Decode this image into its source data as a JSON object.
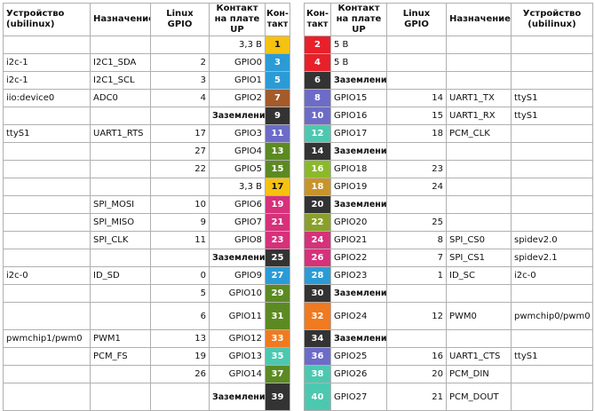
{
  "headers": {
    "left": [
      "Устройство (ubilinux)",
      "Назначение",
      "Linux GPIO",
      "Контакт на плате UP",
      "Кон-такт"
    ],
    "right": [
      "Кон-такт",
      "Контакт на плате UP",
      "Linux GPIO",
      "Назначение",
      "Устройство (ubilinux)"
    ]
  },
  "rows": [
    {
      "tall": false,
      "l": {
        "dev": "",
        "func": "",
        "gpio": "",
        "name": "3,3 В",
        "bold": false,
        "pin": "1",
        "color": "#f5c211",
        "dark": true
      },
      "r": {
        "pin": "2",
        "color": "#e8202a",
        "dark": false,
        "name": "5 В",
        "bold": false,
        "gpio": "",
        "func": "",
        "dev": ""
      }
    },
    {
      "tall": false,
      "l": {
        "dev": "i2c-1",
        "func": "I2C1_SDA",
        "gpio": "2",
        "name": "GPIO0",
        "bold": false,
        "pin": "3",
        "color": "#2b9bd6",
        "dark": false
      },
      "r": {
        "pin": "4",
        "color": "#e8202a",
        "dark": false,
        "name": "5 В",
        "bold": false,
        "gpio": "",
        "func": "",
        "dev": ""
      }
    },
    {
      "tall": false,
      "l": {
        "dev": "i2c-1",
        "func": "I2C1_SCL",
        "gpio": "3",
        "name": "GPIO1",
        "bold": false,
        "pin": "5",
        "color": "#2b9bd6",
        "dark": false
      },
      "r": {
        "pin": "6",
        "color": "#333333",
        "dark": false,
        "name": "Заземление",
        "bold": true,
        "gpio": "",
        "func": "",
        "dev": ""
      }
    },
    {
      "tall": false,
      "l": {
        "dev": "iio:device0",
        "func": "ADC0",
        "gpio": "4",
        "name": "GPIO2",
        "bold": false,
        "pin": "7",
        "color": "#a55a2a",
        "dark": false
      },
      "r": {
        "pin": "8",
        "color": "#6c6cc8",
        "dark": false,
        "name": "GPIO15",
        "bold": false,
        "gpio": "14",
        "func": "UART1_TX",
        "dev": "ttyS1"
      }
    },
    {
      "tall": false,
      "l": {
        "dev": "",
        "func": "",
        "gpio": "",
        "name": "Заземление",
        "bold": true,
        "pin": "9",
        "color": "#333333",
        "dark": false
      },
      "r": {
        "pin": "10",
        "color": "#6c6cc8",
        "dark": false,
        "name": "GPIO16",
        "bold": false,
        "gpio": "15",
        "func": "UART1_RX",
        "dev": "ttyS1"
      }
    },
    {
      "tall": false,
      "l": {
        "dev": "ttyS1",
        "func": "UART1_RTS",
        "gpio": "17",
        "name": "GPIO3",
        "bold": false,
        "pin": "11",
        "color": "#6c6cc8",
        "dark": false
      },
      "r": {
        "pin": "12",
        "color": "#4dc8b0",
        "dark": false,
        "name": "GPIO17",
        "bold": false,
        "gpio": "18",
        "func": "PCM_CLK",
        "dev": ""
      }
    },
    {
      "tall": false,
      "l": {
        "dev": "",
        "func": "",
        "gpio": "27",
        "name": "GPIO4",
        "bold": false,
        "pin": "13",
        "color": "#5c8a22",
        "dark": false
      },
      "r": {
        "pin": "14",
        "color": "#333333",
        "dark": false,
        "name": "Заземление",
        "bold": true,
        "gpio": "",
        "func": "",
        "dev": ""
      }
    },
    {
      "tall": false,
      "l": {
        "dev": "",
        "func": "",
        "gpio": "22",
        "name": "GPIO5",
        "bold": false,
        "pin": "15",
        "color": "#5c8a22",
        "dark": false
      },
      "r": {
        "pin": "16",
        "color": "#8aba2a",
        "dark": false,
        "name": "GPIO18",
        "bold": false,
        "gpio": "23",
        "func": "",
        "dev": ""
      }
    },
    {
      "tall": false,
      "l": {
        "dev": "",
        "func": "",
        "gpio": "",
        "name": "3,3 В",
        "bold": false,
        "pin": "17",
        "color": "#f5c211",
        "dark": true
      },
      "r": {
        "pin": "18",
        "color": "#c8942a",
        "dark": false,
        "name": "GPIO19",
        "bold": false,
        "gpio": "24",
        "func": "",
        "dev": ""
      }
    },
    {
      "tall": false,
      "l": {
        "dev": "",
        "func": "SPI_MOSI",
        "gpio": "10",
        "name": "GPIO6",
        "bold": false,
        "pin": "19",
        "color": "#d6317a",
        "dark": false
      },
      "r": {
        "pin": "20",
        "color": "#333333",
        "dark": false,
        "name": "Заземление",
        "bold": true,
        "gpio": "",
        "func": "",
        "dev": ""
      }
    },
    {
      "tall": false,
      "l": {
        "dev": "",
        "func": "SPI_MISO",
        "gpio": "9",
        "name": "GPIO7",
        "bold": false,
        "pin": "21",
        "color": "#d6317a",
        "dark": false
      },
      "r": {
        "pin": "22",
        "color": "#8aa02a",
        "dark": false,
        "name": "GPIO20",
        "bold": false,
        "gpio": "25",
        "func": "",
        "dev": ""
      }
    },
    {
      "tall": false,
      "l": {
        "dev": "",
        "func": "SPI_CLK",
        "gpio": "11",
        "name": "GPIO8",
        "bold": false,
        "pin": "23",
        "color": "#d6317a",
        "dark": false
      },
      "r": {
        "pin": "24",
        "color": "#d6317a",
        "dark": false,
        "name": "GPIO21",
        "bold": false,
        "gpio": "8",
        "func": "SPI_CS0",
        "dev": "spidev2.0"
      }
    },
    {
      "tall": false,
      "l": {
        "dev": "",
        "func": "",
        "gpio": "",
        "name": "Заземление",
        "bold": true,
        "pin": "25",
        "color": "#333333",
        "dark": false
      },
      "r": {
        "pin": "26",
        "color": "#d6317a",
        "dark": false,
        "name": "GPIO22",
        "bold": false,
        "gpio": "7",
        "func": "SPI_CS1",
        "dev": "spidev2.1"
      }
    },
    {
      "tall": false,
      "l": {
        "dev": "i2c-0",
        "func": "ID_SD",
        "gpio": "0",
        "name": "GPIO9",
        "bold": false,
        "pin": "27",
        "color": "#2b9bd6",
        "dark": false
      },
      "r": {
        "pin": "28",
        "color": "#2b9bd6",
        "dark": false,
        "name": "GPIO23",
        "bold": false,
        "gpio": "1",
        "func": "ID_SC",
        "dev": "i2c-0"
      }
    },
    {
      "tall": false,
      "l": {
        "dev": "",
        "func": "",
        "gpio": "5",
        "name": "GPIO10",
        "bold": false,
        "pin": "29",
        "color": "#5c8a22",
        "dark": false
      },
      "r": {
        "pin": "30",
        "color": "#333333",
        "dark": false,
        "name": "Заземление",
        "bold": true,
        "gpio": "",
        "func": "",
        "dev": ""
      }
    },
    {
      "tall": true,
      "l": {
        "dev": "",
        "func": "",
        "gpio": "6",
        "name": "GPIO11",
        "bold": false,
        "pin": "31",
        "color": "#5c8a22",
        "dark": false
      },
      "r": {
        "pin": "32",
        "color": "#f07a20",
        "dark": false,
        "name": "GPIO24",
        "bold": false,
        "gpio": "12",
        "func": "PWM0",
        "dev": "pwmchip0/pwm0"
      }
    },
    {
      "tall": false,
      "l": {
        "dev": "pwmchip1/pwm0",
        "func": "PWM1",
        "gpio": "13",
        "name": "GPIO12",
        "bold": false,
        "pin": "33",
        "color": "#f07a20",
        "dark": false
      },
      "r": {
        "pin": "34",
        "color": "#333333",
        "dark": false,
        "name": "Заземление",
        "bold": true,
        "gpio": "",
        "func": "",
        "dev": ""
      }
    },
    {
      "tall": false,
      "l": {
        "dev": "",
        "func": "PCM_FS",
        "gpio": "19",
        "name": "GPIO13",
        "bold": false,
        "pin": "35",
        "color": "#4dc8b0",
        "dark": false
      },
      "r": {
        "pin": "36",
        "color": "#6c6cc8",
        "dark": false,
        "name": "GPIO25",
        "bold": false,
        "gpio": "16",
        "func": "UART1_CTS",
        "dev": "ttyS1"
      }
    },
    {
      "tall": false,
      "l": {
        "dev": "",
        "func": "",
        "gpio": "26",
        "name": "GPIO14",
        "bold": false,
        "pin": "37",
        "color": "#5c8a22",
        "dark": false
      },
      "r": {
        "pin": "38",
        "color": "#4dc8b0",
        "dark": false,
        "name": "GPIO26",
        "bold": false,
        "gpio": "20",
        "func": "PCM_DIN",
        "dev": ""
      }
    },
    {
      "tall": true,
      "l": {
        "dev": "",
        "func": "",
        "gpio": "",
        "name": "Заземление",
        "bold": true,
        "pin": "39",
        "color": "#333333",
        "dark": false
      },
      "r": {
        "pin": "40",
        "color": "#4dc8b0",
        "dark": false,
        "name": "GPIO27",
        "bold": false,
        "gpio": "21",
        "func": "PCM_DOUT",
        "dev": ""
      }
    }
  ]
}
